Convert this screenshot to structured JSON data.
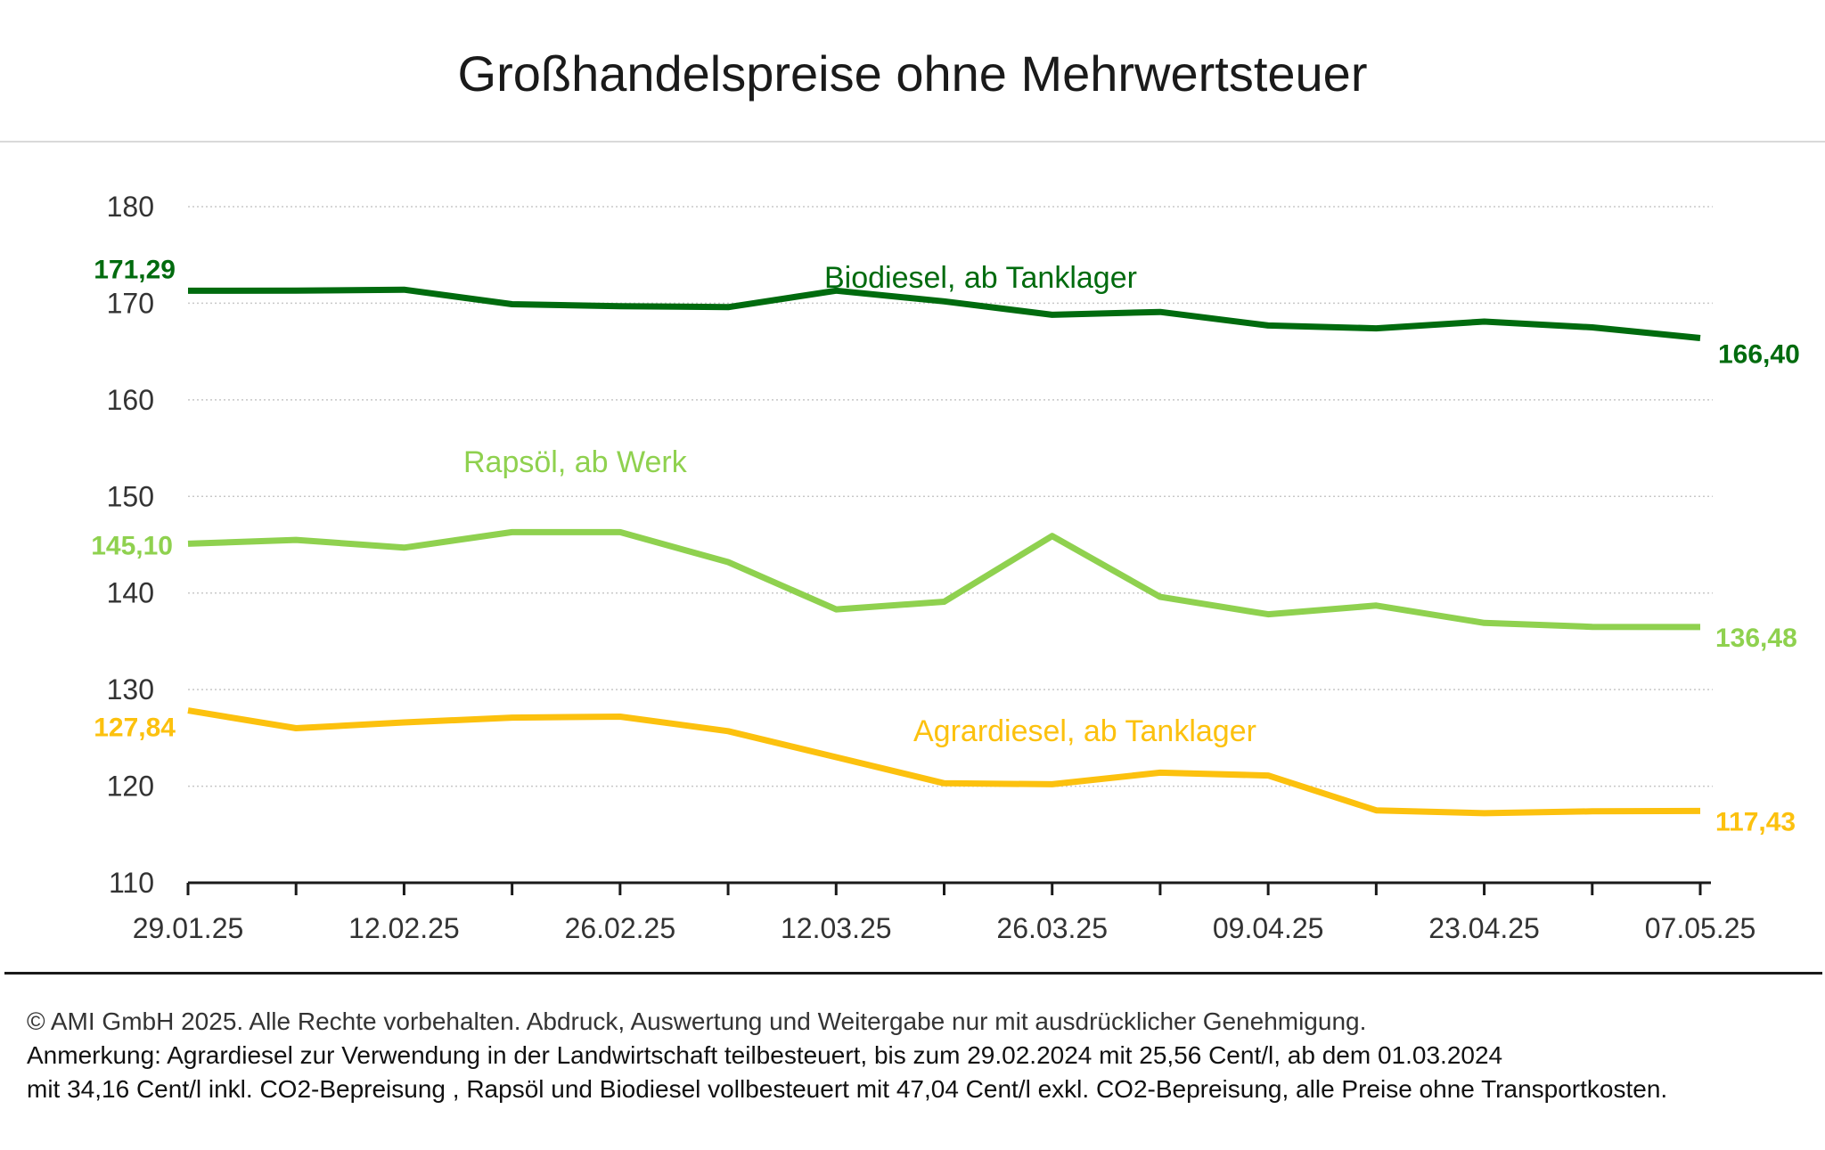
{
  "chart_data": {
    "type": "line",
    "title": "Großhandelspreise ohne Mehrwertsteuer",
    "xlabel": "",
    "ylabel": "",
    "ylim": [
      110,
      180
    ],
    "yticks": [
      110,
      120,
      130,
      140,
      150,
      160,
      170,
      180
    ],
    "y_tick_labels": [
      "110",
      "120",
      "130",
      "140",
      "150",
      "160",
      "170",
      "180"
    ],
    "grid": "horizontal dotted",
    "x_tick_labels": [
      "29.01.25",
      "12.02.25",
      "26.02.25",
      "12.03.25",
      "26.03.25",
      "09.04.25",
      "23.04.25",
      "07.05.25"
    ],
    "x_tick_positions": [
      0,
      2,
      4,
      6,
      8,
      10,
      12,
      14
    ],
    "x": [
      "29.01.25",
      "05.02.25",
      "12.02.25",
      "19.02.25",
      "26.02.25",
      "05.03.25",
      "12.03.25",
      "19.03.25",
      "26.03.25",
      "02.04.25",
      "09.04.25",
      "16.04.25",
      "23.04.25",
      "30.04.25",
      "07.05.25"
    ],
    "series": [
      {
        "name": "Biodiesel, ab Tanklager",
        "color": "#006b0e",
        "values": [
          171.29,
          171.3,
          171.4,
          169.9,
          169.7,
          169.6,
          171.3,
          170.2,
          168.8,
          169.1,
          167.7,
          167.4,
          168.1,
          167.5,
          166.4
        ],
        "start_label": "171,29",
        "end_label": "166,40"
      },
      {
        "name": "Rapsöl, ab Werk",
        "color": "#8fd14f",
        "values": [
          145.1,
          145.5,
          144.7,
          146.3,
          146.3,
          143.2,
          138.3,
          139.1,
          145.9,
          139.6,
          137.8,
          138.7,
          136.9,
          136.5,
          136.48
        ],
        "start_label": "145,10",
        "end_label": "136,48"
      },
      {
        "name": "Agrardiesel, ab Tanklager",
        "color": "#fcc10e",
        "values": [
          127.84,
          126.0,
          126.6,
          127.1,
          127.2,
          125.7,
          123.0,
          120.3,
          120.2,
          121.4,
          121.1,
          117.5,
          117.2,
          117.4,
          117.43
        ],
        "start_label": "127,84",
        "end_label": "117,43"
      }
    ]
  },
  "footer": {
    "copyright": "© AMI GmbH 2025.  Alle Rechte vorbehalten.  Abdruck, Auswertung und Weitergabe nur mit ausdrücklicher Genehmigung.",
    "note_line1": "Anmerkung: Agrardiesel zur Verwendung in der Landwirtschaft teilbesteuert, bis zum 29.02.2024 mit 25,56 Cent/l, ab dem 01.03.2024",
    "note_line2": "mit 34,16 Cent/l inkl. CO2-Bepreisung , Rapsöl und Biodiesel vollbesteuert mit 47,04 Cent/l exkl. CO2-Bepreisung, alle Preise ohne Transportkosten."
  }
}
